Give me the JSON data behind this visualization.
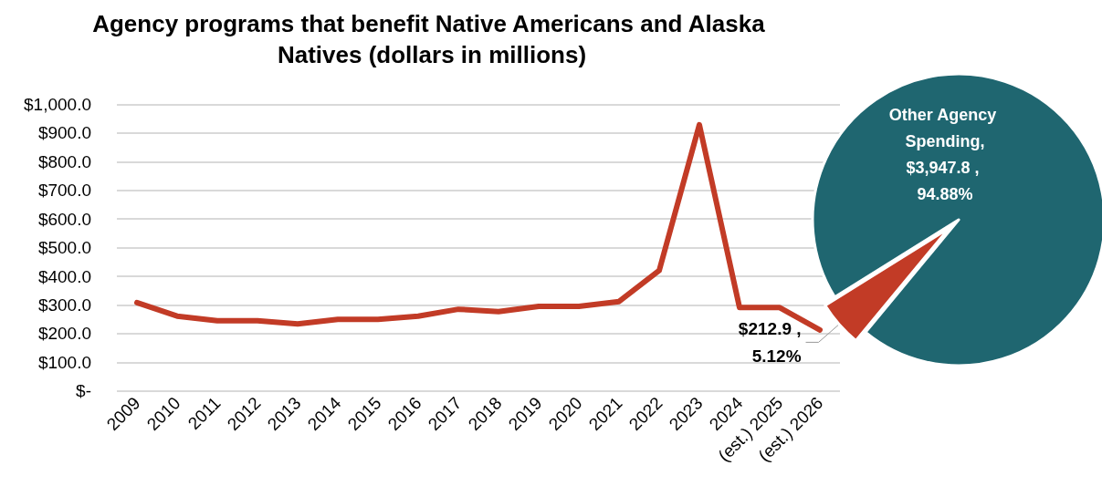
{
  "chart_data": [
    {
      "type": "line",
      "title": "Agency programs that benefit Native Americans and Alaska Natives (dollars in millions)",
      "categories": [
        "2009",
        "2010",
        "2011",
        "2012",
        "2013",
        "2014",
        "2015",
        "2016",
        "2017",
        "2018",
        "2019",
        "2020",
        "2021",
        "2022",
        "2023",
        "2024",
        "(est.) 2025",
        "(est.) 2026"
      ],
      "series": [
        {
          "color": "#c23b26",
          "values": [
            308,
            261,
            245,
            245,
            234,
            250,
            250,
            261,
            285,
            277,
            295,
            295,
            312,
            420,
            929,
            291,
            291,
            213
          ]
        }
      ],
      "ylim": [
        0,
        1000
      ],
      "yticks": [
        {
          "value": 0,
          "label": "$-"
        },
        {
          "value": 100,
          "label": "$100.0"
        },
        {
          "value": 200,
          "label": "$200.0"
        },
        {
          "value": 300,
          "label": "$300.0"
        },
        {
          "value": 400,
          "label": "$400.0"
        },
        {
          "value": 500,
          "label": "$500.0"
        },
        {
          "value": 600,
          "label": "$600.0"
        },
        {
          "value": 700,
          "label": "$700.0"
        },
        {
          "value": 800,
          "label": "$800.0"
        },
        {
          "value": 900,
          "label": "$900.0"
        },
        {
          "value": 1000,
          "label": "$1,000.0"
        }
      ],
      "grid": "y",
      "legend": false,
      "marker": "none",
      "line_style": "solid"
    },
    {
      "type": "pie",
      "categories": [
        "Other Agency Spending",
        null
      ],
      "values": [
        3947.8,
        212.9
      ],
      "colors": [
        "#1f6670",
        "#c23b26"
      ],
      "value_labels": [
        ", $3,947.8 , 94.88%",
        "$212.9 , 5.12%"
      ],
      "legend": false
    }
  ]
}
